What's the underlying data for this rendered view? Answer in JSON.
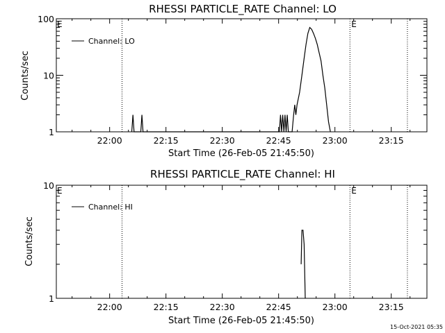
{
  "chart_data": [
    {
      "type": "line",
      "title": "RHESSI PARTICLE_RATE Channel: LO",
      "xlabel": "Start Time (26-Feb-05 21:45:50)",
      "ylabel": "Counts/sec",
      "y_scale": "log",
      "ylim": [
        1,
        100
      ],
      "y_ticks": [
        "1",
        "10",
        "100"
      ],
      "x_ticks": [
        "22:00",
        "22:15",
        "22:30",
        "22:45",
        "23:00",
        "23:15"
      ],
      "x_tick_minutes": [
        0,
        15,
        30,
        45,
        60,
        75
      ],
      "xlim_minutes": [
        -14.2,
        84.5
      ],
      "legend": {
        "label": "Channel: LO",
        "position": "top-left"
      },
      "grid": false,
      "event_lines": [
        {
          "minutes": 3.3,
          "label": ""
        },
        {
          "minutes": 64.0,
          "label": "E"
        },
        {
          "minutes": 79.3,
          "label": ""
        }
      ],
      "edge_markers": [
        {
          "label": "E",
          "side": "left"
        }
      ],
      "series": [
        {
          "values": [
            [
              5.9,
              1
            ],
            [
              6.2,
              2
            ],
            [
              6.5,
              1
            ],
            [
              8.3,
              1
            ],
            [
              8.6,
              2
            ],
            [
              8.9,
              1
            ],
            [
              45.2,
              1
            ],
            [
              45.5,
              2
            ],
            [
              45.8,
              1
            ],
            [
              46.1,
              2
            ],
            [
              46.4,
              1
            ],
            [
              46.7,
              2
            ],
            [
              47.0,
              1
            ],
            [
              47.3,
              2
            ],
            [
              47.6,
              1
            ],
            [
              48.6,
              1
            ],
            [
              49.0,
              2
            ],
            [
              49.3,
              3
            ],
            [
              49.6,
              2
            ],
            [
              49.9,
              3
            ],
            [
              50.6,
              5
            ],
            [
              51.2,
              10
            ],
            [
              51.8,
              20
            ],
            [
              52.3,
              35
            ],
            [
              52.8,
              55
            ],
            [
              53.3,
              70
            ],
            [
              53.8,
              65
            ],
            [
              54.3,
              55
            ],
            [
              54.8,
              45
            ],
            [
              55.3,
              35
            ],
            [
              55.8,
              25
            ],
            [
              56.3,
              18
            ],
            [
              56.8,
              10
            ],
            [
              57.3,
              6
            ],
            [
              57.8,
              3
            ],
            [
              58.3,
              1.5
            ],
            [
              58.8,
              1
            ]
          ]
        }
      ]
    },
    {
      "type": "line",
      "title": "RHESSI PARTICLE_RATE Channel: HI",
      "xlabel": "Start Time (26-Feb-05 21:45:50)",
      "ylabel": "Counts/sec",
      "y_scale": "log",
      "ylim": [
        1,
        10
      ],
      "y_ticks": [
        "1",
        "10"
      ],
      "x_ticks": [
        "22:00",
        "22:15",
        "22:30",
        "22:45",
        "23:00",
        "23:15"
      ],
      "x_tick_minutes": [
        0,
        15,
        30,
        45,
        60,
        75
      ],
      "xlim_minutes": [
        -14.2,
        84.5
      ],
      "legend": {
        "label": "Channel: HI",
        "position": "top-left"
      },
      "grid": false,
      "event_lines": [
        {
          "minutes": 3.3,
          "label": ""
        },
        {
          "minutes": 64.0,
          "label": "E"
        },
        {
          "minutes": 79.3,
          "label": ""
        }
      ],
      "edge_markers": [
        {
          "label": "E",
          "side": "left"
        }
      ],
      "series": [
        {
          "values": [
            [
              51.0,
              2
            ],
            [
              51.2,
              4
            ],
            [
              51.5,
              4
            ],
            [
              51.8,
              3
            ],
            [
              52.1,
              1
            ]
          ]
        }
      ]
    }
  ],
  "footer": {
    "timestamp": "15-Oct-2021 05:35"
  }
}
